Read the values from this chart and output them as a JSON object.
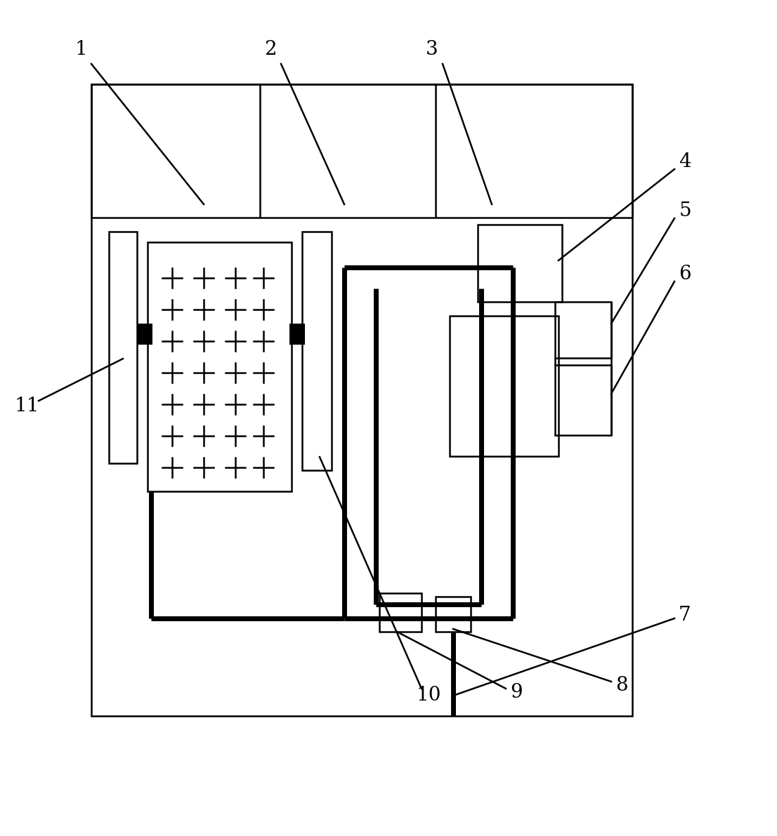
{
  "fig_width": 11.06,
  "fig_height": 11.91,
  "bg_color": "#ffffff",
  "line_color": "#000000",
  "thick_lw": 5.0,
  "thin_lw": 1.8,
  "label_fontsize": 20
}
